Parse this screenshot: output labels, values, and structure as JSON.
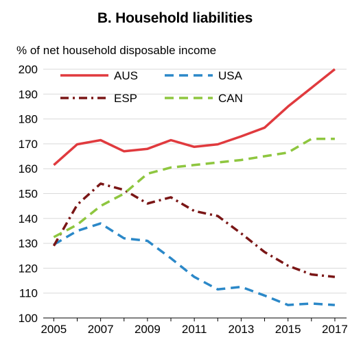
{
  "chart_data": {
    "type": "line",
    "title": "B. Household liabilities",
    "ylabel": "% of net household disposable income",
    "xlabel": "",
    "ylim": [
      100,
      200
    ],
    "y_ticks": [
      100,
      110,
      120,
      130,
      140,
      150,
      160,
      170,
      180,
      190,
      200
    ],
    "xlim": [
      2004.55,
      2017.5
    ],
    "x_ticks": [
      2005,
      2007,
      2009,
      2011,
      2013,
      2015,
      2017
    ],
    "x": [
      2005,
      2006,
      2007,
      2008,
      2009,
      2010,
      2011,
      2012,
      2013,
      2014,
      2015,
      2016,
      2017
    ],
    "grid": true,
    "legend_position": "top",
    "series": [
      {
        "name": "AUS",
        "color": "#e03a3e",
        "dash": "solid",
        "values": [
          161.5,
          169.8,
          171.5,
          167.0,
          168.0,
          171.5,
          168.8,
          169.8,
          173.0,
          176.5,
          185.0,
          192.5,
          200.0
        ]
      },
      {
        "name": "USA",
        "color": "#2b88c8",
        "dash": "dashed",
        "values": [
          129.5,
          135.0,
          138.0,
          132.0,
          131.0,
          124.0,
          116.5,
          111.5,
          112.5,
          109.0,
          105.2,
          105.8,
          105.2
        ]
      },
      {
        "name": "ESP",
        "color": "#7a1616",
        "dash": "dashdot",
        "values": [
          129.0,
          145.5,
          154.0,
          151.5,
          146.0,
          148.5,
          143.0,
          141.0,
          134.0,
          126.5,
          121.0,
          117.5,
          116.5
        ]
      },
      {
        "name": "CAN",
        "color": "#8ec63f",
        "dash": "dashed",
        "values": [
          132.5,
          137.5,
          145.0,
          150.0,
          158.0,
          160.5,
          161.5,
          162.5,
          163.5,
          165.0,
          166.5,
          172.0,
          172.0
        ]
      }
    ]
  }
}
